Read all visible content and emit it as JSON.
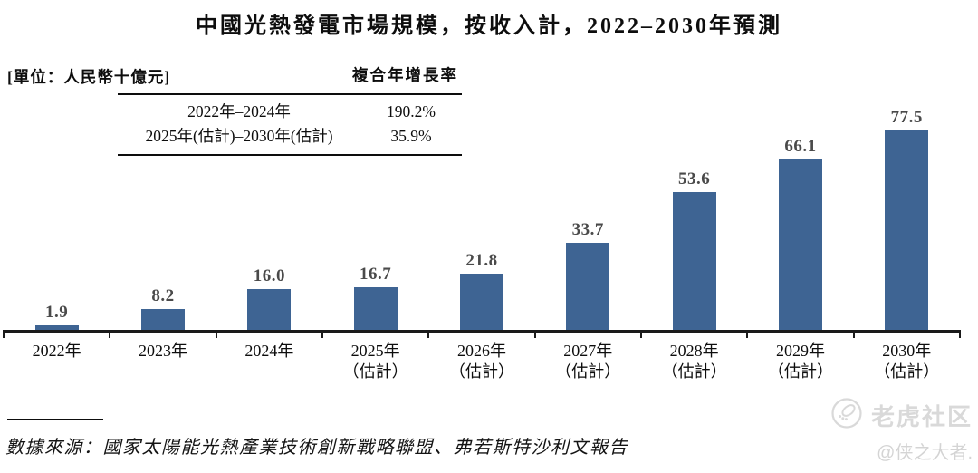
{
  "title": "中國光熱發電市場規模，按收入計，2022–2030年預測",
  "unit_label": "[單位：人民幣十億元]",
  "cagr_table": {
    "header": "複合年增長率",
    "rows": [
      {
        "period": "2022年–2024年",
        "value": "190.2%"
      },
      {
        "period": "2025年(估計)–2030年(估計)",
        "value": "35.9%"
      }
    ]
  },
  "chart_data": {
    "type": "bar",
    "title": "中國光熱發電市場規模，按收入計，2022–2030年預測",
    "unit": "人民幣十億元",
    "categories": [
      "2022年",
      "2023年",
      "2024年",
      "2025年",
      "2026年",
      "2027年",
      "2028年",
      "2029年",
      "2030年"
    ],
    "category_sublabels": [
      "",
      "",
      "",
      "（估計）",
      "（估計）",
      "（估計）",
      "（估計）",
      "（估計）",
      "（估計）"
    ],
    "values": [
      1.9,
      8.2,
      16.0,
      16.7,
      21.8,
      33.7,
      53.6,
      66.1,
      77.5
    ],
    "value_labels": [
      "1.9",
      "8.2",
      "16.0",
      "16.7",
      "21.8",
      "33.7",
      "53.6",
      "66.1",
      "77.5"
    ],
    "ylim": [
      0,
      80
    ],
    "xlabel": "",
    "ylabel": "人民幣十億元",
    "grid": "off",
    "legend": "none",
    "bar_color": "#3e6493",
    "value_label_color": "#4a4a4a",
    "axis_color": "#1a1a1a"
  },
  "footnote": "數據來源：國家太陽能光熱產業技術創新戰略聯盟、弗若斯特沙利文報告",
  "watermark": {
    "icon": "tiger-logo-icon",
    "brand": "老虎社区",
    "handle": "@侠之大者."
  }
}
